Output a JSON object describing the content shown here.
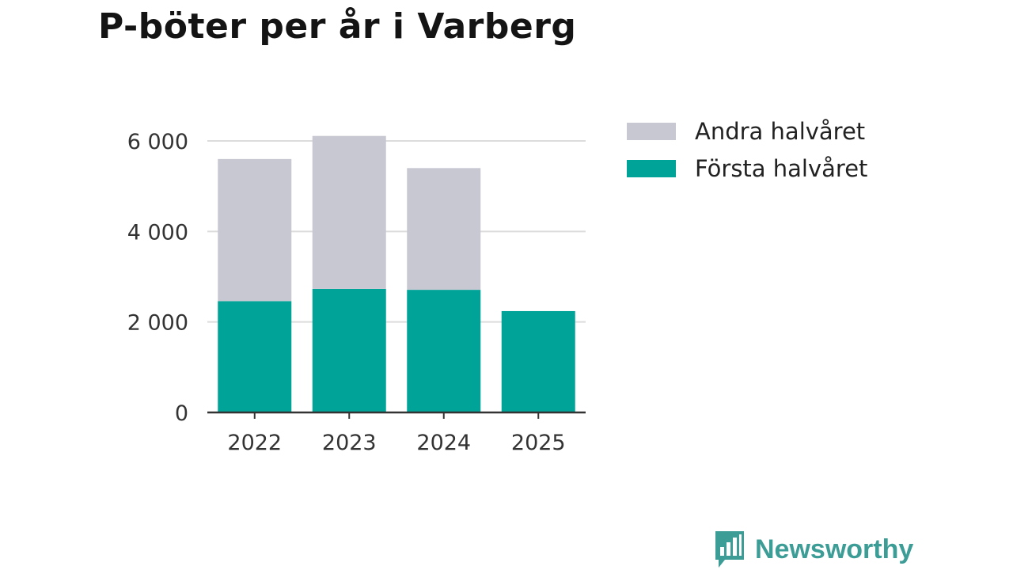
{
  "chart_data": {
    "type": "bar",
    "stacked": true,
    "title": "P-böter per år i Varberg",
    "categories": [
      "2022",
      "2023",
      "2024",
      "2025"
    ],
    "series": [
      {
        "name": "Första halvåret",
        "color": "#00a398",
        "values": [
          2460,
          2730,
          2710,
          2240
        ]
      },
      {
        "name": "Andra halvåret",
        "color": "#c8c8d2",
        "values": [
          3140,
          3380,
          2690,
          0
        ]
      }
    ],
    "ylim": [
      0,
      6000
    ],
    "yticks": [
      0,
      2000,
      4000,
      6000
    ],
    "ytick_labels": [
      "0",
      "2 000",
      "4 000",
      "6 000"
    ],
    "grid": true,
    "legend_position": "right",
    "legend": [
      "Andra halvåret",
      "Första halvåret"
    ],
    "xlabel": "",
    "ylabel": ""
  },
  "brand": {
    "name": "Newsworthy",
    "color": "#3c9c96",
    "icon": "bar-chart-speech-bubble-icon"
  }
}
